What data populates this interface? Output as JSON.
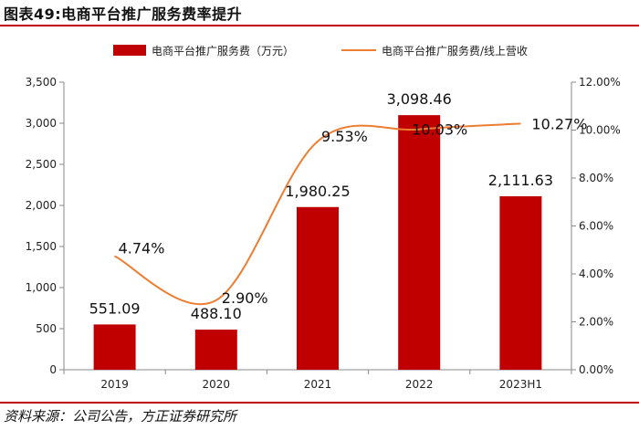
{
  "figure_title": "图表49:电商平台推广服务费率提升",
  "source_note": "资料来源：公司公告，方正证券研究所",
  "colors": {
    "bar": "#c00000",
    "line": "#ed7d31",
    "rule": "#c00000"
  },
  "chart_data": {
    "type": "bar",
    "categories": [
      "2019",
      "2020",
      "2021",
      "2022",
      "2023H1"
    ],
    "series": [
      {
        "name": "电商平台推广服务费（万元）",
        "type": "bar",
        "axis": "left",
        "values": [
          551.09,
          488.1,
          1980.25,
          3098.46,
          2111.63
        ],
        "value_labels": [
          "551.09",
          "488.10",
          "1,980.25",
          "3,098.46",
          "2,111.63"
        ]
      },
      {
        "name": "电商平台推广服务费/线上营收",
        "type": "line",
        "axis": "right",
        "values": [
          4.74,
          2.9,
          9.53,
          10.03,
          10.27
        ],
        "value_labels": [
          "4.74%",
          "2.90%",
          "9.53%",
          "10.03%",
          "10.27%"
        ]
      }
    ],
    "y_left": {
      "min": 0,
      "max": 3500,
      "step": 500,
      "tick_labels": [
        "0",
        "500",
        "1,000",
        "1,500",
        "2,000",
        "2,500",
        "3,000",
        "3,500"
      ]
    },
    "y_right": {
      "min": 0,
      "max": 12,
      "step": 2,
      "tick_labels": [
        "0.00%",
        "2.00%",
        "4.00%",
        "6.00%",
        "8.00%",
        "10.00%",
        "12.00%"
      ]
    },
    "legend_position": "top",
    "grid": false
  }
}
